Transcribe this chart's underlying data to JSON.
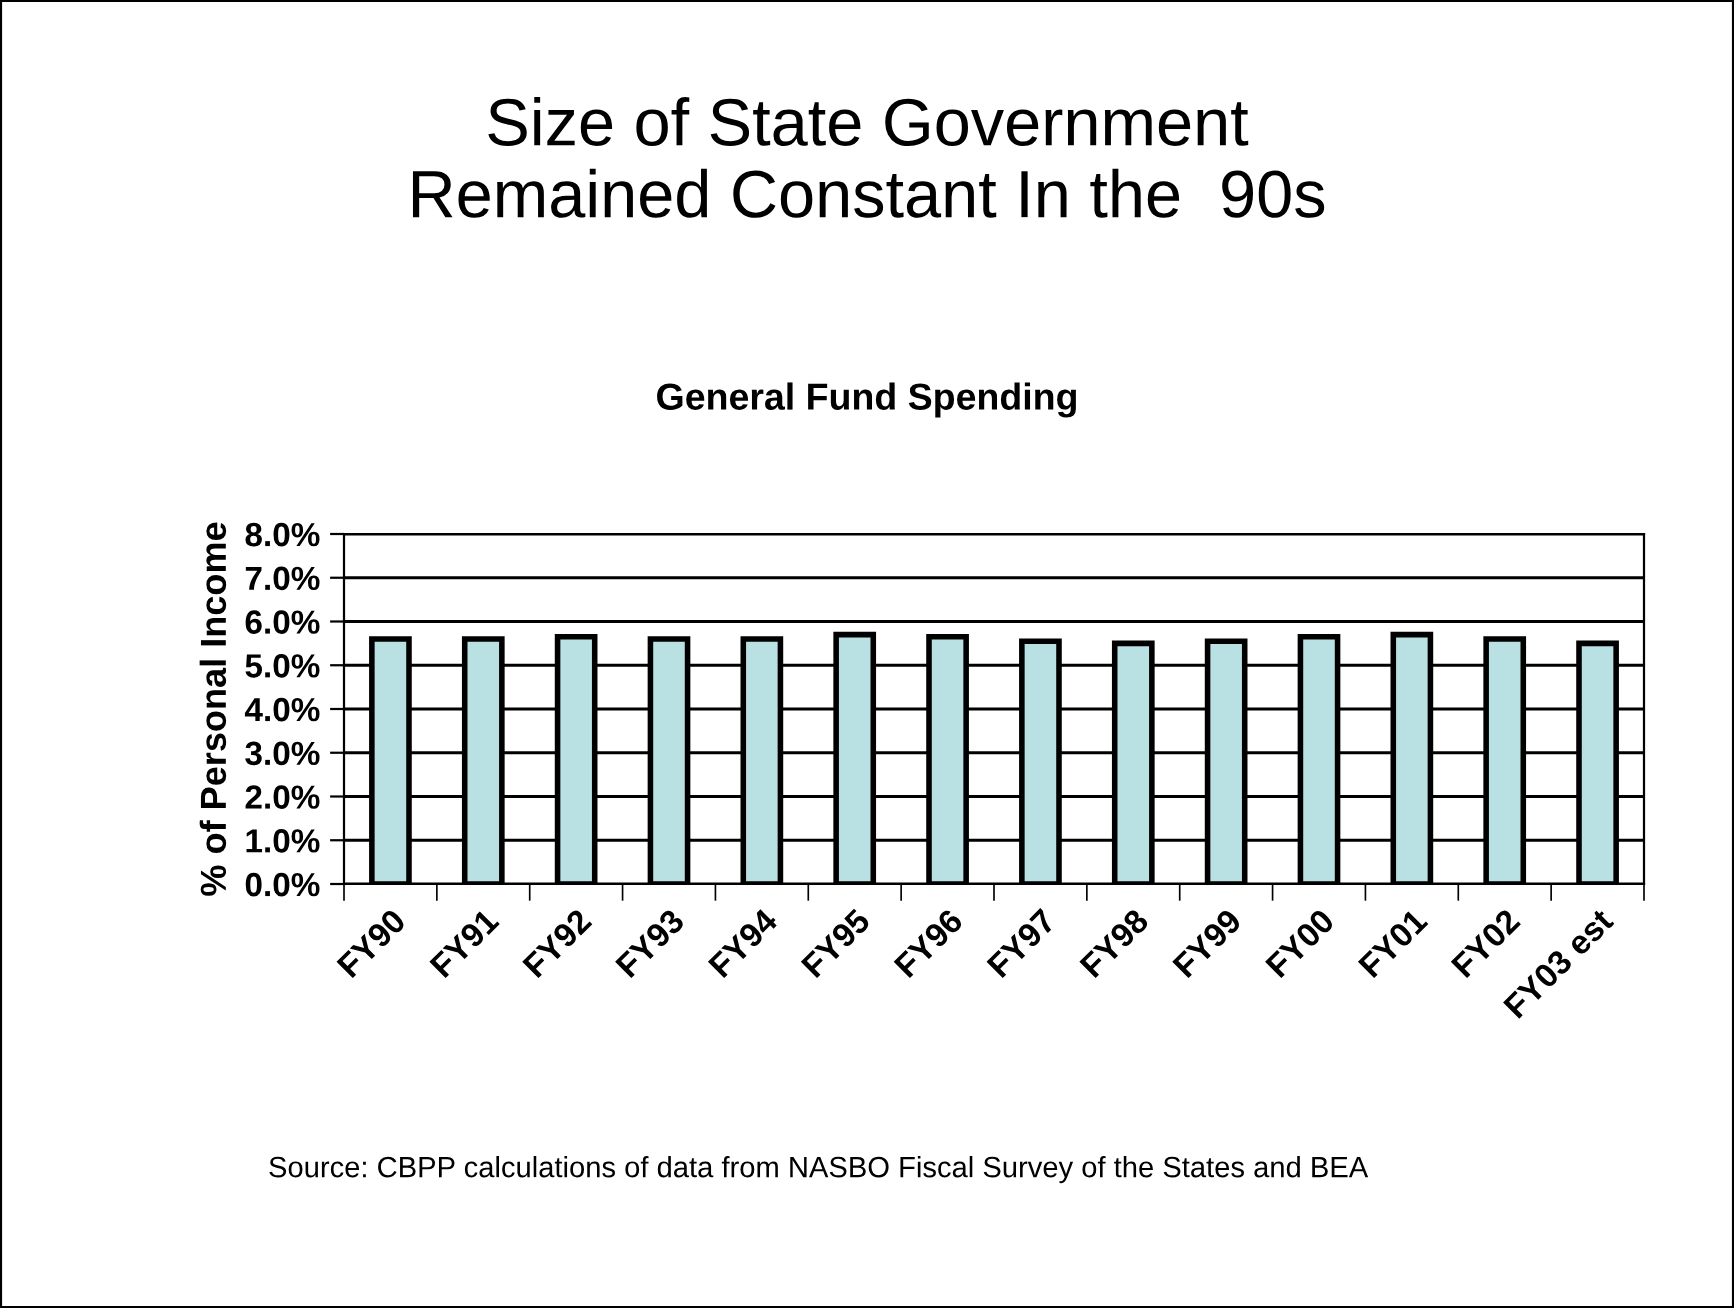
{
  "chart_data": {
    "type": "bar",
    "title": "Size of State Government\nRemained Constant In the  90s",
    "subtitle": "General Fund Spending",
    "ylabel": "% of Personal Income",
    "categories": [
      "FY90",
      "FY91",
      "FY92",
      "FY93",
      "FY94",
      "FY95",
      "FY96",
      "FY97",
      "FY98",
      "FY99",
      "FY00",
      "FY01",
      "FY02",
      "FY03 est"
    ],
    "values": [
      5.6,
      5.6,
      5.65,
      5.6,
      5.6,
      5.7,
      5.65,
      5.55,
      5.5,
      5.55,
      5.65,
      5.7,
      5.6,
      5.5
    ],
    "color": "#b9e0e2",
    "ylim": [
      0,
      8
    ],
    "yticks": [
      {
        "value": 0,
        "label": "0.0%"
      },
      {
        "value": 1,
        "label": "1.0%"
      },
      {
        "value": 2,
        "label": "2.0%"
      },
      {
        "value": 3,
        "label": "3.0%"
      },
      {
        "value": 4,
        "label": "4.0%"
      },
      {
        "value": 5,
        "label": "5.0%"
      },
      {
        "value": 6,
        "label": "6.0%"
      },
      {
        "value": 7,
        "label": "7.0%"
      },
      {
        "value": 8,
        "label": "8.0%"
      }
    ],
    "grid": "y",
    "legend": false,
    "annotations": [
      "Source: CBPP calculations of data from NASBO Fiscal Survey of the States and BEA"
    ]
  }
}
